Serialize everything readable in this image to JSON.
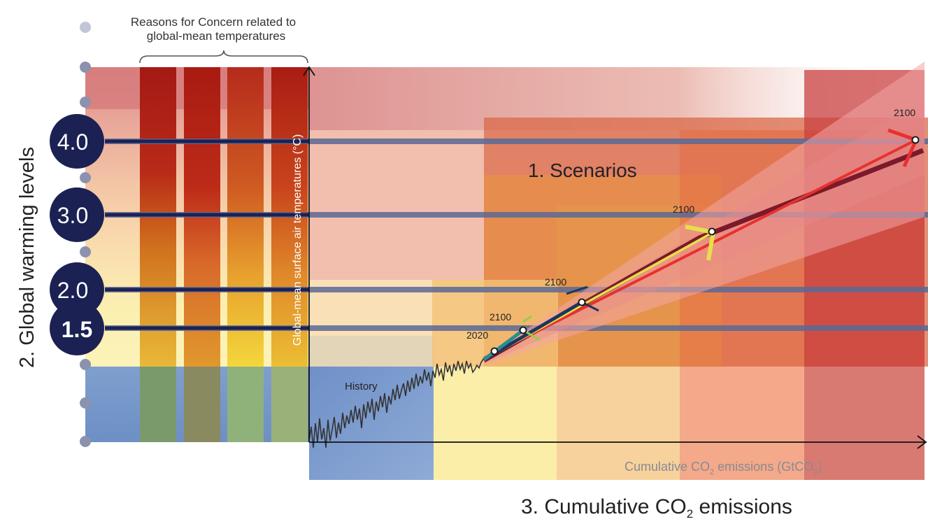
{
  "rfc_header": {
    "line1": "Reasons for Concern related to",
    "line2": "global-mean temperatures"
  },
  "warming_levels": [
    {
      "label": "4.0",
      "bold": false
    },
    {
      "label": "3.0",
      "bold": false
    },
    {
      "label": "2.0",
      "bold": false
    },
    {
      "label": "1.5",
      "bold": true
    }
  ],
  "side_title": "2. Global warming levels",
  "y_axis_title": "Global-mean surface air temperatures (°C)",
  "x_axis_title": {
    "main": "Cumulative CO",
    "sub": "2",
    "rest": " emissions (GtCO",
    "sub2": "2",
    "close": ")"
  },
  "scenarios_label": "1. Scenarios",
  "history_label": "History",
  "bottom_title": {
    "main": "3. Cumulative CO",
    "sub": "2",
    "rest": " emissions"
  },
  "year_labels": [
    "2020",
    "2100",
    "2100",
    "2100",
    "2100"
  ],
  "colors": {
    "navy": "#1b2152",
    "band_gray": "#5b6a96",
    "scenario_red": "#e8312f",
    "scenario_yellow": "#e7df4a",
    "scenario_navy": "#1f3560",
    "scenario_teal": "#2a8e8e",
    "scenario_green": "#8fd04a",
    "history_line": "#333333"
  }
}
